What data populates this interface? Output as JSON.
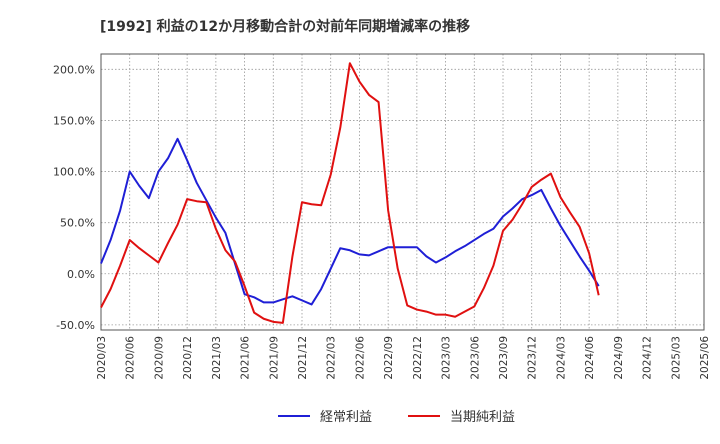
{
  "chart_data": {
    "type": "line",
    "title": "[1992]  利益の12か月移動合計の対前年同期増減率の推移",
    "x_ticks": [
      "2020/03",
      "2020/06",
      "2020/09",
      "2020/12",
      "2021/03",
      "2021/06",
      "2021/09",
      "2021/12",
      "2022/03",
      "2022/06",
      "2022/09",
      "2022/12",
      "2023/03",
      "2023/06",
      "2023/09",
      "2023/12",
      "2024/03",
      "2024/06",
      "2024/09",
      "2024/12",
      "2025/03",
      "2025/06"
    ],
    "y_ticks": [
      {
        "value": -50,
        "label": "-50.0%"
      },
      {
        "value": 0,
        "label": "0.0%"
      },
      {
        "value": 50,
        "label": "50.0%"
      },
      {
        "value": 100,
        "label": "100.0%"
      },
      {
        "value": 150,
        "label": "150.0%"
      },
      {
        "value": 200,
        "label": "200.0%"
      }
    ],
    "ylim": [
      -55,
      215
    ],
    "xlim": [
      0,
      63
    ],
    "grid": true,
    "legend_position": "bottom-center",
    "series": [
      {
        "name": "経常利益",
        "color": "#1f1fd6",
        "points": [
          [
            0,
            10
          ],
          [
            1,
            33
          ],
          [
            2,
            62
          ],
          [
            3,
            100
          ],
          [
            4,
            86
          ],
          [
            5,
            74
          ],
          [
            6,
            100
          ],
          [
            7,
            113
          ],
          [
            8,
            132
          ],
          [
            9,
            111
          ],
          [
            10,
            89
          ],
          [
            11,
            72
          ],
          [
            12,
            55
          ],
          [
            13,
            40
          ],
          [
            14,
            10
          ],
          [
            15,
            -20
          ],
          [
            16,
            -23
          ],
          [
            17,
            -28
          ],
          [
            18,
            -28
          ],
          [
            19,
            -25
          ],
          [
            20,
            -22
          ],
          [
            21,
            -26
          ],
          [
            22,
            -30
          ],
          [
            23,
            -15
          ],
          [
            24,
            5
          ],
          [
            25,
            25
          ],
          [
            26,
            23
          ],
          [
            27,
            19
          ],
          [
            28,
            18
          ],
          [
            29,
            22
          ],
          [
            30,
            26
          ],
          [
            31,
            26
          ],
          [
            32,
            26
          ],
          [
            33,
            26
          ],
          [
            34,
            17
          ],
          [
            35,
            11
          ],
          [
            36,
            16
          ],
          [
            37,
            22
          ],
          [
            38,
            27
          ],
          [
            39,
            33
          ],
          [
            40,
            39
          ],
          [
            41,
            44
          ],
          [
            42,
            56
          ],
          [
            43,
            64
          ],
          [
            44,
            73
          ],
          [
            45,
            77
          ],
          [
            46,
            82
          ],
          [
            47,
            64
          ],
          [
            48,
            47
          ],
          [
            49,
            32
          ],
          [
            50,
            17
          ],
          [
            51,
            3
          ],
          [
            52,
            -12
          ]
        ]
      },
      {
        "name": "当期純利益",
        "color": "#e01010",
        "points": [
          [
            0,
            -33
          ],
          [
            1,
            -15
          ],
          [
            2,
            8
          ],
          [
            3,
            33
          ],
          [
            4,
            25
          ],
          [
            5,
            18
          ],
          [
            6,
            11
          ],
          [
            7,
            30
          ],
          [
            8,
            48
          ],
          [
            9,
            73
          ],
          [
            10,
            71
          ],
          [
            11,
            70
          ],
          [
            12,
            44
          ],
          [
            13,
            23
          ],
          [
            14,
            12
          ],
          [
            15,
            -12
          ],
          [
            16,
            -38
          ],
          [
            17,
            -44
          ],
          [
            18,
            -47
          ],
          [
            19,
            -48
          ],
          [
            20,
            17
          ],
          [
            21,
            70
          ],
          [
            22,
            68
          ],
          [
            23,
            67
          ],
          [
            24,
            97
          ],
          [
            25,
            143
          ],
          [
            26,
            206
          ],
          [
            27,
            188
          ],
          [
            28,
            175
          ],
          [
            29,
            168
          ],
          [
            30,
            62
          ],
          [
            31,
            5
          ],
          [
            32,
            -31
          ],
          [
            33,
            -35
          ],
          [
            34,
            -37
          ],
          [
            35,
            -40
          ],
          [
            36,
            -40
          ],
          [
            37,
            -42
          ],
          [
            38,
            -37
          ],
          [
            39,
            -32
          ],
          [
            40,
            -14
          ],
          [
            41,
            8
          ],
          [
            42,
            42
          ],
          [
            43,
            53
          ],
          [
            44,
            68
          ],
          [
            45,
            85
          ],
          [
            46,
            92
          ],
          [
            47,
            98
          ],
          [
            48,
            75
          ],
          [
            49,
            60
          ],
          [
            50,
            46
          ],
          [
            51,
            20
          ],
          [
            52,
            -21
          ]
        ]
      }
    ]
  }
}
